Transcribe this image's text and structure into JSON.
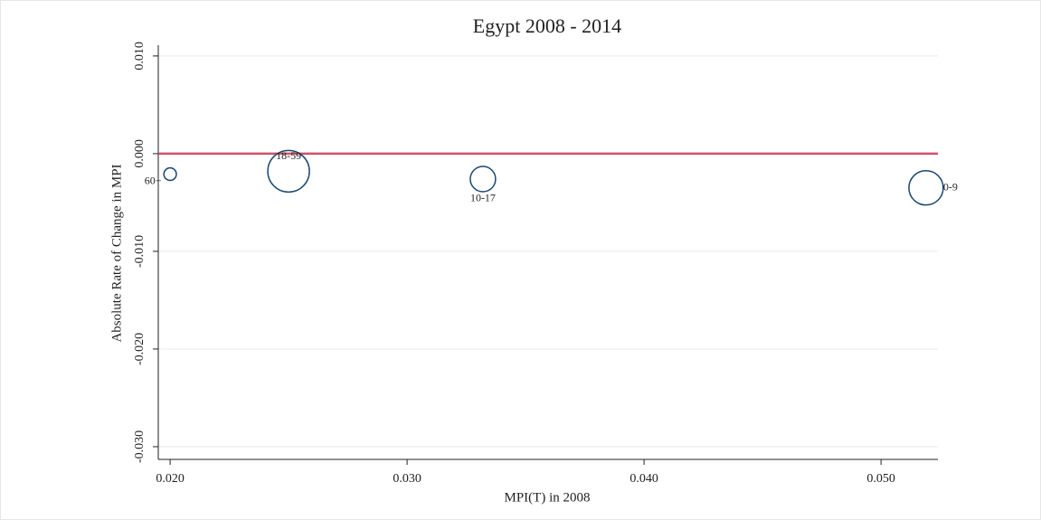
{
  "chart_data": {
    "type": "scatter",
    "title": "Egypt 2008 - 2014",
    "x_label": "MPI(T) in 2008",
    "y_label": "Absolute Rate of Change in MPI",
    "x": [
      0.02,
      0.025,
      0.0332,
      0.0519
    ],
    "values": [
      -0.0021,
      -0.0018,
      -0.0026,
      -0.0035
    ],
    "sizes": [
      9,
      100,
      37,
      68
    ],
    "point_labels": [
      "60+",
      "18-59",
      "10-17",
      "0-9"
    ],
    "label_positions": [
      "left",
      "top",
      "bottom",
      "right"
    ],
    "color": "#1a476f",
    "label_color": "#8b2e1e",
    "reference_line": {
      "y": 0,
      "color": "#d05068"
    },
    "xlim": [
      0.0195,
      0.0524
    ],
    "ylim": [
      -0.0313,
      0.0111
    ],
    "xticks": [
      {
        "value": 0.02,
        "label": "0.020"
      },
      {
        "value": 0.03,
        "label": "0.030"
      },
      {
        "value": 0.04,
        "label": "0.040"
      },
      {
        "value": 0.05,
        "label": "0.050"
      }
    ],
    "yticks": [
      {
        "value": 0.01,
        "label": "0.010"
      },
      {
        "value": 0,
        "label": "0.000"
      },
      {
        "value": -0.01,
        "label": "-0.010"
      },
      {
        "value": -0.02,
        "label": "-0.020"
      },
      {
        "value": -0.03,
        "label": "-0.030"
      }
    ],
    "grid": true
  }
}
